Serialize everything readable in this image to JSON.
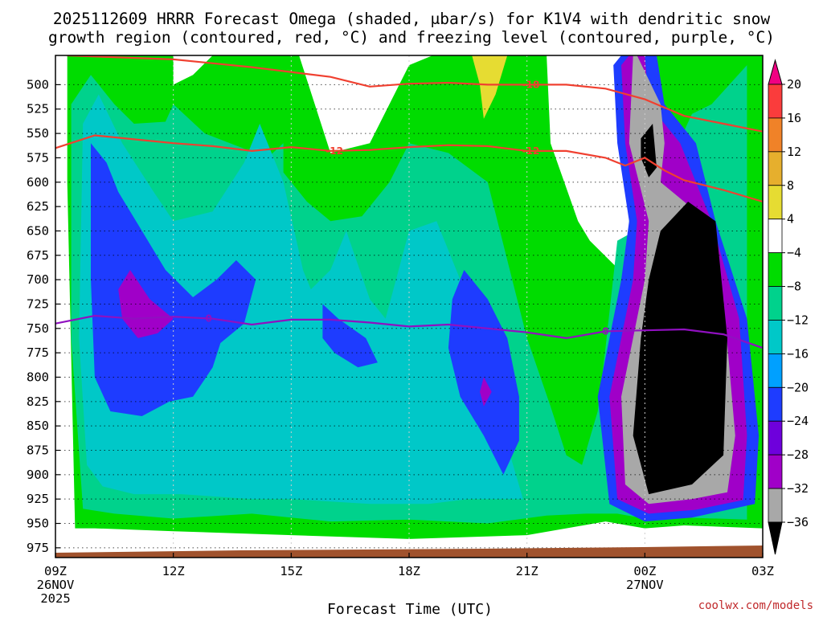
{
  "chart_data": {
    "type": "heatmap",
    "title_line1": "2025112609 HRRR Forecast Omega (shaded, μbar/s) for K1V4 with dendritic snow",
    "title_line2": "growth region (contoured, red, °C) and freezing level (contoured, purple, °C)",
    "xlabel": "Forecast Time (UTC)",
    "ylabel": "",
    "x_ticks": [
      {
        "hour": 9,
        "label": "09Z",
        "sub1": "26NOV",
        "sub2": "2025"
      },
      {
        "hour": 12,
        "label": "12Z",
        "sub1": "",
        "sub2": ""
      },
      {
        "hour": 15,
        "label": "15Z",
        "sub1": "",
        "sub2": ""
      },
      {
        "hour": 18,
        "label": "18Z",
        "sub1": "",
        "sub2": ""
      },
      {
        "hour": 21,
        "label": "21Z",
        "sub1": "",
        "sub2": ""
      },
      {
        "hour": 24,
        "label": "00Z",
        "sub1": "27NOV",
        "sub2": ""
      },
      {
        "hour": 27,
        "label": "03Z",
        "sub1": "",
        "sub2": ""
      }
    ],
    "xlim": [
      9,
      27
    ],
    "ylim_hpa": [
      985,
      470
    ],
    "y_ticks": [
      500,
      525,
      550,
      575,
      600,
      625,
      650,
      675,
      700,
      725,
      750,
      775,
      800,
      825,
      850,
      875,
      900,
      925,
      950,
      975
    ],
    "colorbar": {
      "levels": [
        -36,
        -32,
        -28,
        -24,
        -20,
        -16,
        -12,
        -8,
        -4,
        4,
        8,
        12,
        16,
        20
      ],
      "tick_labels": [
        "20",
        "16",
        "12",
        "8",
        "4",
        "−4",
        "−8",
        "−12",
        "−16",
        "−20",
        "−24",
        "−28",
        "−32",
        "−36"
      ],
      "colors": [
        "#000000",
        "#a8a8a8",
        "#a000c8",
        "#6e00dc",
        "#1e3cff",
        "#00a0ff",
        "#00c8c8",
        "#00d28c",
        "#00dc00",
        "#ffffff",
        "#e6dc32",
        "#e6af2d",
        "#f08228",
        "#fa3c3c",
        "#f00082"
      ]
    },
    "dgz_contours": [
      {
        "label": "-18",
        "color": "#f04030",
        "points": [
          [
            9.3,
            470
          ],
          [
            12,
            474
          ],
          [
            14,
            482
          ],
          [
            16,
            492
          ],
          [
            17,
            502
          ],
          [
            18,
            499
          ],
          [
            19,
            498
          ],
          [
            20,
            500
          ],
          [
            21,
            500
          ],
          [
            22,
            500
          ],
          [
            23,
            504
          ],
          [
            24,
            515
          ],
          [
            25,
            532
          ],
          [
            26,
            540
          ],
          [
            27,
            548
          ]
        ]
      },
      {
        "label": "-12",
        "color": "#f04030",
        "points": [
          [
            9,
            565
          ],
          [
            10,
            552
          ],
          [
            11,
            556
          ],
          [
            12,
            560
          ],
          [
            13,
            563
          ],
          [
            14,
            568
          ],
          [
            15,
            564
          ],
          [
            16,
            568
          ],
          [
            17,
            567
          ],
          [
            18,
            564
          ],
          [
            19,
            562
          ],
          [
            20,
            563
          ],
          [
            21,
            568
          ],
          [
            22,
            568
          ],
          [
            23,
            575
          ],
          [
            23.5,
            583
          ],
          [
            24,
            575
          ],
          [
            24.5,
            588
          ],
          [
            25,
            598
          ],
          [
            26,
            608
          ],
          [
            27,
            620
          ]
        ]
      }
    ],
    "freezing_level": {
      "label": "0",
      "color": "#9010c0",
      "points": [
        [
          9,
          745
        ],
        [
          10,
          737
        ],
        [
          11,
          740
        ],
        [
          12,
          738
        ],
        [
          13,
          740
        ],
        [
          14,
          746
        ],
        [
          15,
          741
        ],
        [
          16,
          741
        ],
        [
          17,
          744
        ],
        [
          18,
          748
        ],
        [
          19,
          746
        ],
        [
          20,
          750
        ],
        [
          21,
          754
        ],
        [
          22,
          760
        ],
        [
          23,
          753
        ],
        [
          24,
          752
        ],
        [
          25,
          751
        ],
        [
          26,
          756
        ],
        [
          27,
          770
        ]
      ]
    },
    "omega_regions": [
      {
        "level": -8,
        "points": [
          [
            9.3,
            470
          ],
          [
            12,
            470
          ],
          [
            12,
            500
          ],
          [
            12.5,
            490
          ],
          [
            13,
            470
          ],
          [
            15.2,
            470
          ],
          [
            16,
            570
          ],
          [
            17,
            560
          ],
          [
            18,
            480
          ],
          [
            18.6,
            470
          ],
          [
            21.5,
            470
          ],
          [
            21.6,
            560
          ],
          [
            22.3,
            640
          ],
          [
            22.6,
            660
          ],
          [
            23.6,
            700
          ],
          [
            23.6,
            470
          ],
          [
            27,
            470
          ],
          [
            27,
            955
          ],
          [
            25,
            952
          ],
          [
            24,
            955
          ],
          [
            23,
            948
          ],
          [
            22,
            955
          ],
          [
            21,
            962
          ],
          [
            18,
            966
          ],
          [
            15,
            962
          ],
          [
            12,
            958
          ],
          [
            10,
            955
          ],
          [
            9.5,
            955
          ],
          [
            9.3,
            600
          ]
        ]
      },
      {
        "level": -12,
        "points": [
          [
            9.4,
            520
          ],
          [
            9.9,
            490
          ],
          [
            10.5,
            520
          ],
          [
            11,
            540
          ],
          [
            11.8,
            538
          ],
          [
            12,
            520
          ],
          [
            12.8,
            550
          ],
          [
            14.4,
            575
          ],
          [
            14.8,
            560
          ],
          [
            14.8,
            590
          ],
          [
            15.4,
            620
          ],
          [
            16,
            640
          ],
          [
            16.8,
            635
          ],
          [
            17.5,
            600
          ],
          [
            18,
            560
          ],
          [
            19,
            570
          ],
          [
            20,
            600
          ],
          [
            20.5,
            680
          ],
          [
            21,
            760
          ],
          [
            21.6,
            830
          ],
          [
            22,
            880
          ],
          [
            22.4,
            890
          ],
          [
            22.8,
            835
          ],
          [
            23,
            770
          ],
          [
            23.3,
            660
          ],
          [
            24.2,
            640
          ],
          [
            24.8,
            565
          ],
          [
            25.2,
            530
          ],
          [
            25.7,
            520
          ],
          [
            26.6,
            480
          ],
          [
            26.6,
            946
          ],
          [
            25,
            944
          ],
          [
            24,
            945
          ],
          [
            23.3,
            940
          ],
          [
            22.5,
            940
          ],
          [
            21.5,
            942
          ],
          [
            20,
            950
          ],
          [
            18,
            946
          ],
          [
            16,
            948
          ],
          [
            14,
            940
          ],
          [
            12,
            945
          ],
          [
            10.5,
            940
          ],
          [
            9.7,
            935
          ],
          [
            9.4,
            760
          ]
        ]
      },
      {
        "level": -16,
        "points": [
          [
            9.7,
            540
          ],
          [
            10.1,
            510
          ],
          [
            10.7,
            560
          ],
          [
            11.5,
            610
          ],
          [
            12,
            640
          ],
          [
            13,
            630
          ],
          [
            13.8,
            580
          ],
          [
            14.2,
            540
          ],
          [
            14.8,
            600
          ],
          [
            15.3,
            690
          ],
          [
            15.5,
            710
          ],
          [
            16,
            690
          ],
          [
            16.4,
            650
          ],
          [
            17,
            720
          ],
          [
            17.4,
            740
          ],
          [
            18,
            650
          ],
          [
            18.7,
            640
          ],
          [
            19.3,
            700
          ],
          [
            19.7,
            760
          ],
          [
            20.2,
            810
          ],
          [
            20.5,
            870
          ],
          [
            20.9,
            925
          ],
          [
            19.5,
            925
          ],
          [
            18.5,
            930
          ],
          [
            17,
            930
          ],
          [
            15,
            925
          ],
          [
            14,
            925
          ],
          [
            12.2,
            920
          ],
          [
            11,
            920
          ],
          [
            10.2,
            912
          ],
          [
            9.8,
            890
          ],
          [
            9.6,
            760
          ]
        ]
      },
      {
        "level": -20,
        "points": [
          [
            9.9,
            560
          ],
          [
            10.3,
            580
          ],
          [
            10.6,
            610
          ],
          [
            11.2,
            650
          ],
          [
            11.8,
            690
          ],
          [
            12.5,
            718
          ],
          [
            13.1,
            700
          ],
          [
            13.6,
            680
          ],
          [
            14.1,
            700
          ],
          [
            13.8,
            745
          ],
          [
            13.2,
            765
          ],
          [
            13,
            790
          ],
          [
            12.5,
            820
          ],
          [
            11.9,
            825
          ],
          [
            11.2,
            840
          ],
          [
            10.4,
            835
          ],
          [
            10,
            800
          ],
          [
            9.9,
            700
          ]
        ]
      },
      {
        "level": -20,
        "points": [
          [
            15.8,
            725
          ],
          [
            16.2,
            740
          ],
          [
            16.9,
            760
          ],
          [
            17.2,
            785
          ],
          [
            16.7,
            790
          ],
          [
            16.1,
            775
          ],
          [
            15.8,
            760
          ]
        ]
      },
      {
        "level": -20,
        "points": [
          [
            19.4,
            690
          ],
          [
            20,
            720
          ],
          [
            20.5,
            760
          ],
          [
            20.8,
            820
          ],
          [
            20.8,
            865
          ],
          [
            20.4,
            900
          ],
          [
            19.9,
            860
          ],
          [
            19.3,
            820
          ],
          [
            19,
            770
          ],
          [
            19.1,
            720
          ]
        ]
      },
      {
        "level": -28,
        "points": [
          [
            10.9,
            690
          ],
          [
            11.4,
            720
          ],
          [
            12,
            740
          ],
          [
            11.6,
            755
          ],
          [
            11.1,
            760
          ],
          [
            10.7,
            740
          ],
          [
            10.6,
            710
          ]
        ]
      },
      {
        "level": -28,
        "points": [
          [
            19.9,
            800
          ],
          [
            20.1,
            815
          ],
          [
            19.9,
            830
          ],
          [
            19.8,
            815
          ]
        ]
      }
    ],
    "dark_core": [
      {
        "level": -24,
        "points": [
          [
            23.4,
            470
          ],
          [
            24.3,
            470
          ],
          [
            24.5,
            520
          ],
          [
            25.3,
            560
          ],
          [
            25.8,
            640
          ],
          [
            26.6,
            740
          ],
          [
            26.9,
            860
          ],
          [
            26.8,
            930
          ],
          [
            25.2,
            944
          ],
          [
            24,
            948
          ],
          [
            23.1,
            930
          ],
          [
            22.8,
            820
          ],
          [
            23.1,
            760
          ],
          [
            23.4,
            700
          ],
          [
            23.6,
            640
          ],
          [
            23.3,
            560
          ],
          [
            23.2,
            480
          ]
        ]
      },
      {
        "level": -28,
        "points": [
          [
            23.6,
            470
          ],
          [
            24,
            470
          ],
          [
            24.1,
            520
          ],
          [
            24.9,
            560
          ],
          [
            25.7,
            640
          ],
          [
            26.4,
            740
          ],
          [
            26.6,
            860
          ],
          [
            26.5,
            926
          ],
          [
            25.3,
            936
          ],
          [
            24.1,
            940
          ],
          [
            23.3,
            925
          ],
          [
            23.1,
            820
          ],
          [
            23.4,
            760
          ],
          [
            23.7,
            700
          ],
          [
            23.8,
            640
          ],
          [
            23.5,
            560
          ],
          [
            23.4,
            480
          ]
        ]
      },
      {
        "level": -32,
        "points": [
          [
            23.8,
            470
          ],
          [
            24.4,
            520
          ],
          [
            24.5,
            560
          ],
          [
            24.4,
            600
          ],
          [
            24.7,
            610
          ],
          [
            25.6,
            640
          ],
          [
            26,
            720
          ],
          [
            26.3,
            860
          ],
          [
            26.1,
            918
          ],
          [
            25.2,
            925
          ],
          [
            24.1,
            930
          ],
          [
            23.5,
            910
          ],
          [
            23.4,
            820
          ],
          [
            23.7,
            760
          ],
          [
            24,
            700
          ],
          [
            24.1,
            640
          ],
          [
            23.6,
            560
          ],
          [
            23.7,
            470
          ]
        ]
      },
      {
        "level": -36,
        "points": [
          [
            23.9,
            555
          ],
          [
            24.2,
            540
          ],
          [
            24.3,
            585
          ],
          [
            24.1,
            595
          ],
          [
            23.9,
            575
          ]
        ]
      },
      {
        "level": -36,
        "points": [
          [
            24.4,
            650
          ],
          [
            25.1,
            620
          ],
          [
            25.8,
            640
          ],
          [
            26.1,
            760
          ],
          [
            26,
            880
          ],
          [
            25.2,
            910
          ],
          [
            24.1,
            920
          ],
          [
            23.7,
            860
          ],
          [
            23.9,
            760
          ],
          [
            24.1,
            700
          ]
        ]
      }
    ],
    "yellow_region": [
      [
        19.6,
        470
      ],
      [
        20.5,
        470
      ],
      [
        20.2,
        510
      ],
      [
        19.9,
        535
      ],
      [
        19.8,
        500
      ]
    ],
    "ground_label": "",
    "credit": "coolwx.com/models"
  }
}
